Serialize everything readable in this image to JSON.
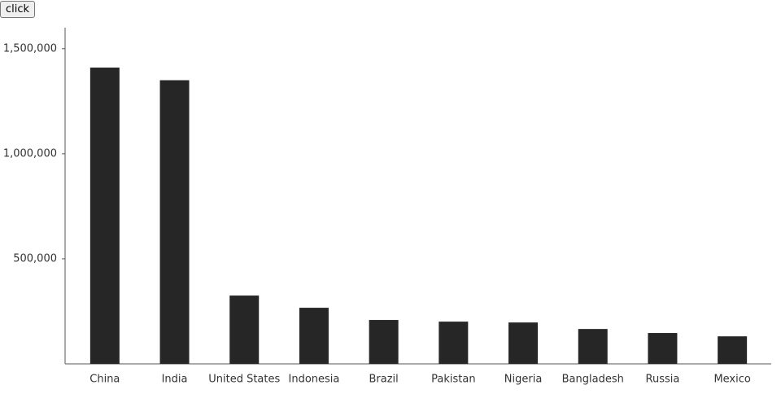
{
  "button_label": "click",
  "chart_data": {
    "type": "bar",
    "categories": [
      "China",
      "India",
      "United States",
      "Indonesia",
      "Brazil",
      "Pakistan",
      "Nigeria",
      "Bangladesh",
      "Russia",
      "Mexico"
    ],
    "values": [
      1410000,
      1350000,
      325000,
      267000,
      209000,
      201000,
      197000,
      166000,
      147000,
      131000
    ],
    "color": "#262626",
    "ylim": [
      0,
      1600000
    ],
    "yticks": [
      {
        "value": 500000,
        "label": "500,000"
      },
      {
        "value": 1000000,
        "label": "1,000,000"
      },
      {
        "value": 1500000,
        "label": "1,500,000"
      }
    ],
    "grid": false
  }
}
